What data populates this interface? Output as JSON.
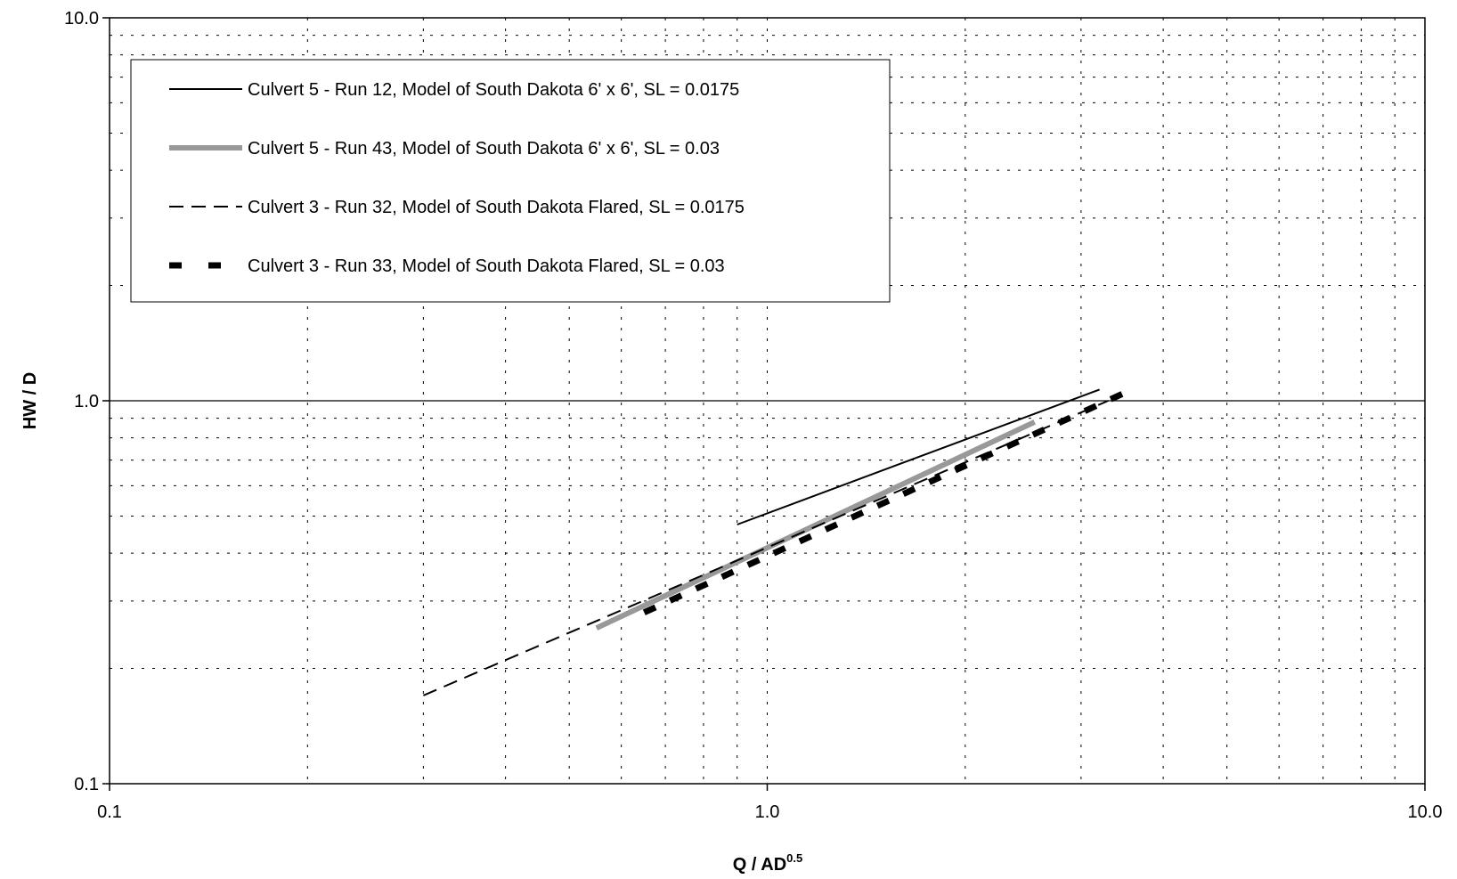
{
  "chart_data": {
    "type": "line",
    "xscale": "log",
    "yscale": "log",
    "xlim": [
      0.1,
      10.0
    ],
    "ylim": [
      0.1,
      10.0
    ],
    "xlabel": "Q / AD",
    "xlabel_sup": "0.5",
    "ylabel": "HW / D",
    "x_ticks": [
      0.1,
      1.0,
      10.0
    ],
    "x_tick_labels": [
      "0.1",
      "1.0",
      "10.0"
    ],
    "y_ticks": [
      0.1,
      1.0,
      10.0
    ],
    "y_tick_labels": [
      "0.1",
      "1.0",
      "10.0"
    ],
    "grid": "major solid at 1.0, minor dotted",
    "legend_position": "top-left",
    "series": [
      {
        "name": "Culvert 5 - Run 12, Model of South Dakota 6' x 6', SL = 0.0175",
        "style": "solid-thin",
        "color": "#000000",
        "x": [
          0.9,
          3.2
        ],
        "y": [
          0.475,
          1.07
        ]
      },
      {
        "name": "Culvert 5 - Run 43, Model of South Dakota 6' x 6', SL = 0.03",
        "style": "solid-thick",
        "color": "#999999",
        "x": [
          0.55,
          2.55
        ],
        "y": [
          0.255,
          0.88
        ]
      },
      {
        "name": "Culvert 3 - Run 32, Model of South Dakota Flared, SL = 0.0175",
        "style": "dashed-thin",
        "color": "#000000",
        "x": [
          0.3,
          3.3
        ],
        "y": [
          0.17,
          1.0
        ]
      },
      {
        "name": "Culvert 3 - Run 33, Model of South Dakota Flared, SL = 0.03",
        "style": "dashed-thick",
        "color": "#000000",
        "x": [
          0.65,
          3.5
        ],
        "y": [
          0.28,
          1.05
        ]
      }
    ]
  }
}
